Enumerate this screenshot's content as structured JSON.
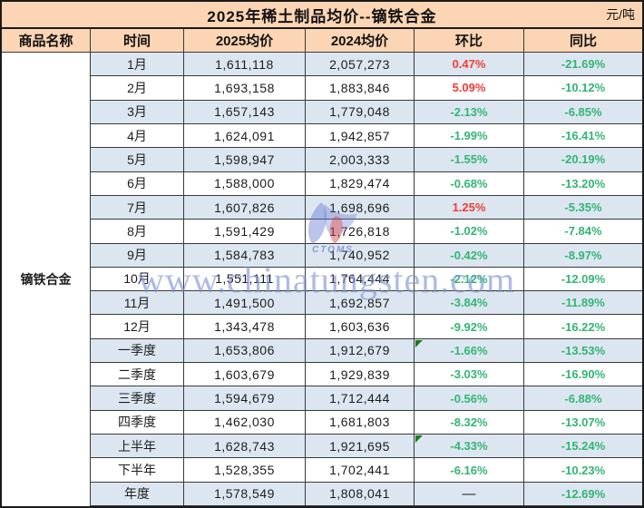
{
  "chart_data": {
    "type": "table",
    "title": "2025年稀土制品均价--镝铁合金",
    "unit": "元/吨",
    "product": "镝铁合金",
    "columns": [
      "商品名称",
      "时间",
      "2025均价",
      "2024均价",
      "环比",
      "同比"
    ],
    "rows": [
      {
        "period": "1月",
        "price_2025": "1,611,118",
        "price_2024": "2,057,273",
        "mom": "0.47%",
        "yoy": "-21.69%"
      },
      {
        "period": "2月",
        "price_2025": "1,693,158",
        "price_2024": "1,883,846",
        "mom": "5.09%",
        "yoy": "-10.12%"
      },
      {
        "period": "3月",
        "price_2025": "1,657,143",
        "price_2024": "1,779,048",
        "mom": "-2.13%",
        "yoy": "-6.85%"
      },
      {
        "period": "4月",
        "price_2025": "1,624,091",
        "price_2024": "1,942,857",
        "mom": "-1.99%",
        "yoy": "-16.41%"
      },
      {
        "period": "5月",
        "price_2025": "1,598,947",
        "price_2024": "2,003,333",
        "mom": "-1.55%",
        "yoy": "-20.19%"
      },
      {
        "period": "6月",
        "price_2025": "1,588,000",
        "price_2024": "1,829,474",
        "mom": "-0.68%",
        "yoy": "-13.20%"
      },
      {
        "period": "7月",
        "price_2025": "1,607,826",
        "price_2024": "1,698,696",
        "mom": "1.25%",
        "yoy": "-5.35%"
      },
      {
        "period": "8月",
        "price_2025": "1,591,429",
        "price_2024": "1,726,818",
        "mom": "-1.02%",
        "yoy": "-7.84%"
      },
      {
        "period": "9月",
        "price_2025": "1,584,783",
        "price_2024": "1,740,952",
        "mom": "-0.42%",
        "yoy": "-8.97%"
      },
      {
        "period": "10月",
        "price_2025": "1,551,111",
        "price_2024": "1,764,444",
        "mom": "-2.12%",
        "yoy": "-12.09%"
      },
      {
        "period": "11月",
        "price_2025": "1,491,500",
        "price_2024": "1,692,857",
        "mom": "-3.84%",
        "yoy": "-11.89%"
      },
      {
        "period": "12月",
        "price_2025": "1,343,478",
        "price_2024": "1,603,636",
        "mom": "-9.92%",
        "yoy": "-16.22%"
      },
      {
        "period": "一季度",
        "price_2025": "1,653,806",
        "price_2024": "1,912,679",
        "mom": "-1.66%",
        "yoy": "-13.53%",
        "corner_marker": true
      },
      {
        "period": "二季度",
        "price_2025": "1,603,679",
        "price_2024": "1,929,839",
        "mom": "-3.03%",
        "yoy": "-16.90%"
      },
      {
        "period": "三季度",
        "price_2025": "1,594,679",
        "price_2024": "1,712,444",
        "mom": "-0.56%",
        "yoy": "-6.88%"
      },
      {
        "period": "四季度",
        "price_2025": "1,462,030",
        "price_2024": "1,681,803",
        "mom": "-8.32%",
        "yoy": "-13.07%"
      },
      {
        "period": "上半年",
        "price_2025": "1,628,743",
        "price_2024": "1,921,695",
        "mom": "-4.33%",
        "yoy": "-15.24%",
        "corner_marker": true
      },
      {
        "period": "下半年",
        "price_2025": "1,528,355",
        "price_2024": "1,702,441",
        "mom": "-6.16%",
        "yoy": "-10.23%"
      },
      {
        "period": "年度",
        "price_2025": "1,578,549",
        "price_2024": "1,808,041",
        "mom": "—",
        "yoy": "-12.69%"
      }
    ]
  },
  "watermark": {
    "logo_text": "CTOMS",
    "site_text": "www.chinatungsten.com"
  },
  "colors": {
    "title_header_bg": "#fcd5b4",
    "row_alt_bg": "#dce6f1",
    "row_bg": "#ffffff",
    "product_col_bg": "#c3d3e8",
    "positive_red": "#f23d33",
    "negative_green": "#33b573",
    "corner_marker_green": "#1e7a1e",
    "border": "#1a1a1a"
  }
}
